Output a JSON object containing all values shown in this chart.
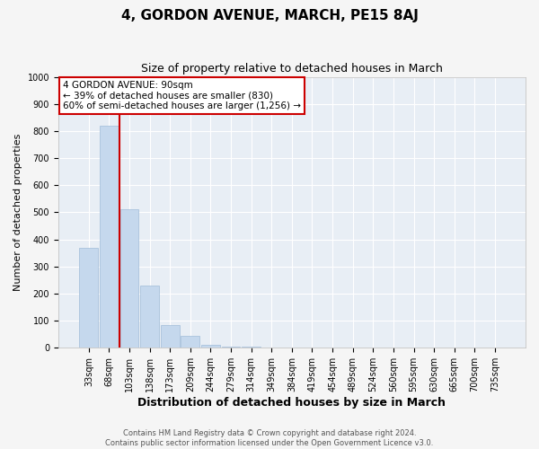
{
  "title": "4, GORDON AVENUE, MARCH, PE15 8AJ",
  "subtitle": "Size of property relative to detached houses in March",
  "xlabel": "Distribution of detached houses by size in March",
  "ylabel": "Number of detached properties",
  "bar_labels": [
    "33sqm",
    "68sqm",
    "103sqm",
    "138sqm",
    "173sqm",
    "209sqm",
    "244sqm",
    "279sqm",
    "314sqm",
    "349sqm",
    "384sqm",
    "419sqm",
    "454sqm",
    "489sqm",
    "524sqm",
    "560sqm",
    "595sqm",
    "630sqm",
    "665sqm",
    "700sqm",
    "735sqm"
  ],
  "bar_values": [
    370,
    820,
    510,
    230,
    85,
    45,
    10,
    5,
    3,
    2,
    1,
    0,
    0,
    0,
    0,
    0,
    0,
    0,
    0,
    0,
    0
  ],
  "bar_color": "#c5d8ed",
  "bar_edge_color": "#a0bcd8",
  "vline_color": "#cc0000",
  "annotation_text": "4 GORDON AVENUE: 90sqm\n← 39% of detached houses are smaller (830)\n60% of semi-detached houses are larger (1,256) →",
  "annotation_box_color": "#ffffff",
  "annotation_box_edge": "#cc0000",
  "ylim": [
    0,
    1000
  ],
  "yticks": [
    0,
    100,
    200,
    300,
    400,
    500,
    600,
    700,
    800,
    900,
    1000
  ],
  "background_color": "#e8eef5",
  "fig_background_color": "#f5f5f5",
  "footer_line1": "Contains HM Land Registry data © Crown copyright and database right 2024.",
  "footer_line2": "Contains public sector information licensed under the Open Government Licence v3.0.",
  "title_fontsize": 11,
  "subtitle_fontsize": 9,
  "xlabel_fontsize": 9,
  "ylabel_fontsize": 8,
  "tick_fontsize": 7,
  "annot_fontsize": 7.5,
  "footer_fontsize": 6
}
